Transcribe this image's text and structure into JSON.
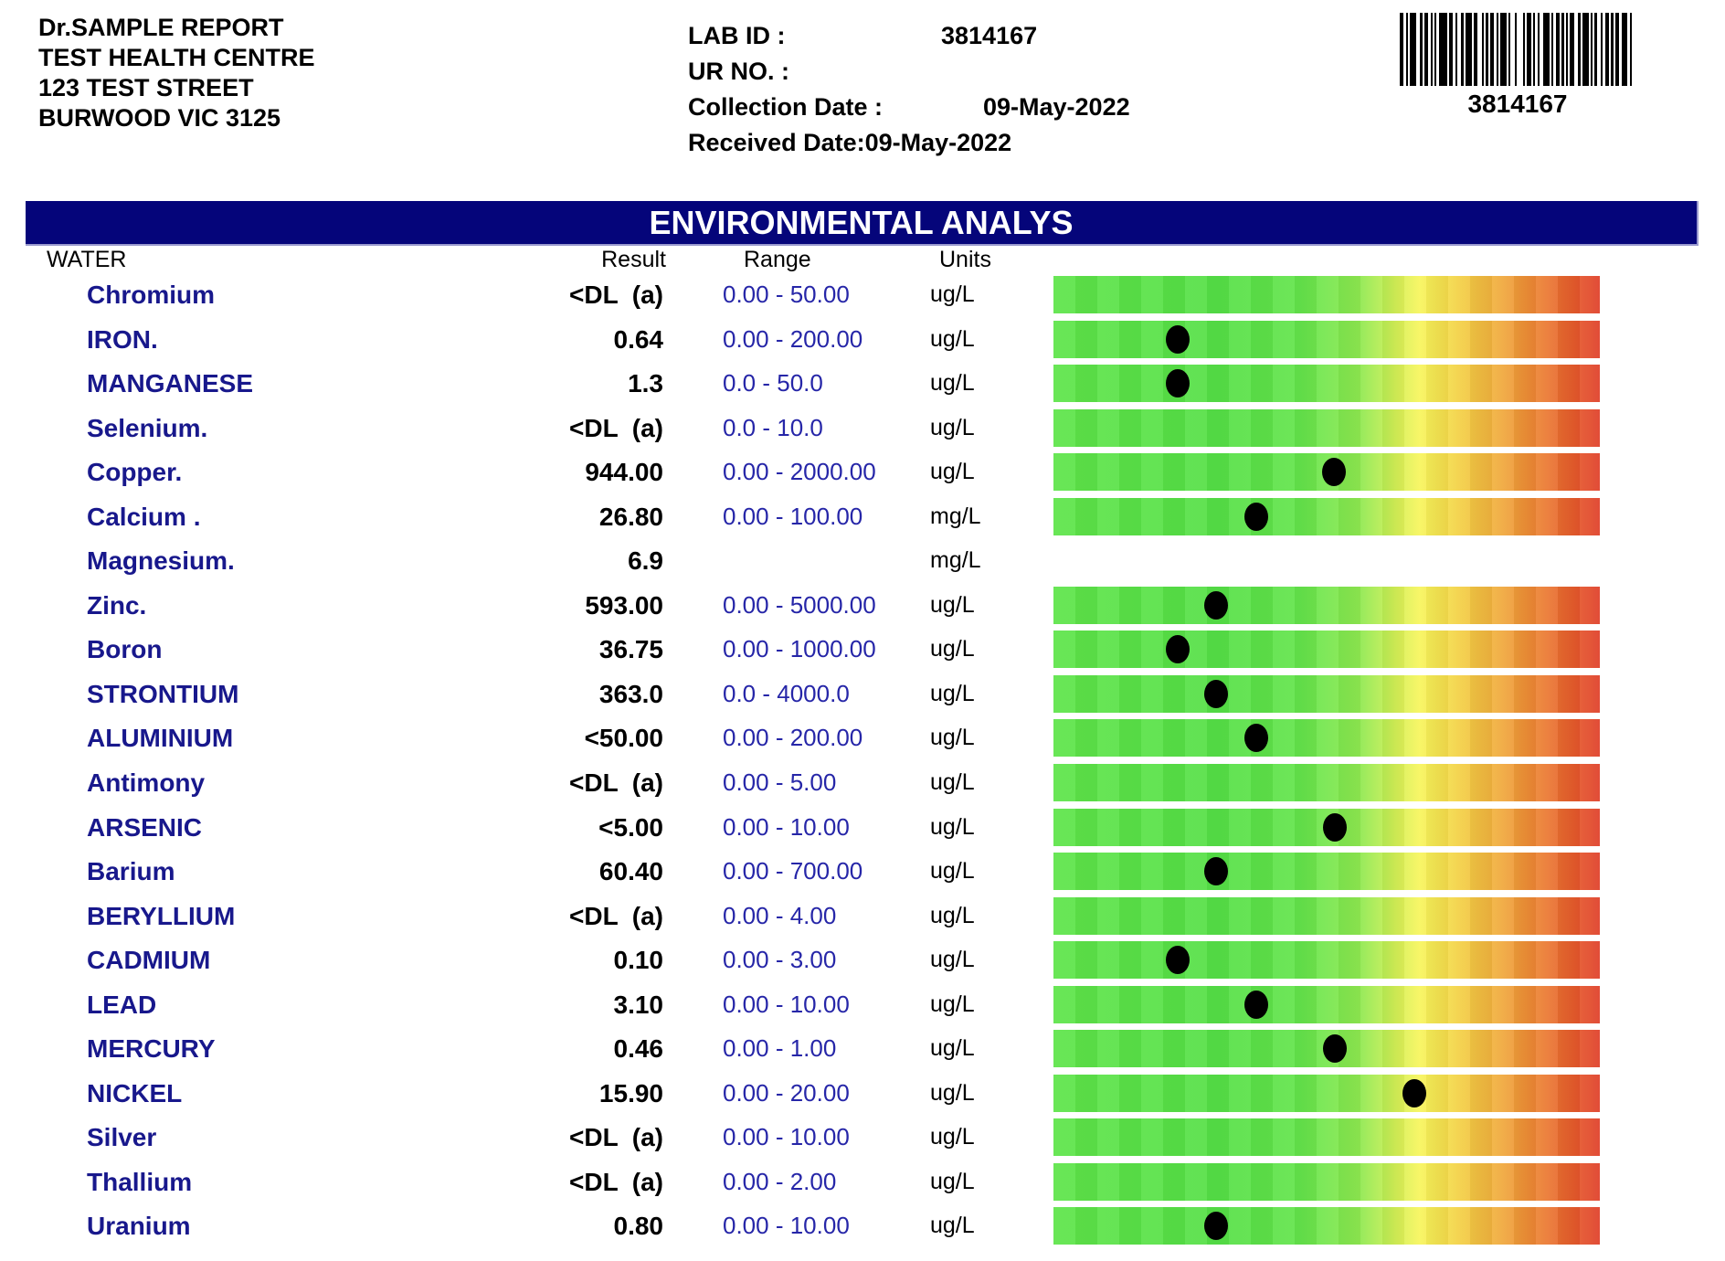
{
  "report_header": {
    "address_lines": [
      "Dr.SAMPLE REPORT",
      "TEST HEALTH CENTRE",
      "123 TEST STREET",
      "BURWOOD VIC 3125"
    ],
    "lab_id_label": "LAB ID :",
    "lab_id_value": "3814167",
    "ur_no_label": "UR NO. :",
    "collection_date_label": "Collection Date :",
    "collection_date_value": "09-May-2022",
    "received_date_label": "Received Date:",
    "received_date_value": "09-May-2022",
    "barcode_number": "3814167"
  },
  "banner": {
    "title": "ENVIRONMENTAL ANALYS",
    "background_color": "#05057a",
    "text_color": "#ffffff"
  },
  "table": {
    "section_label": "WATER",
    "columns": {
      "result": "Result",
      "range": "Range",
      "units": "Units"
    },
    "name_color": "#18188c",
    "range_color": "#2626a8",
    "rows": [
      {
        "name": "Chromium",
        "result": "<DL  (a)",
        "range": "0.00 - 50.00",
        "units": "ug/L",
        "bar": true,
        "dot": null
      },
      {
        "name": "IRON.",
        "result": "0.64",
        "range": "0.00 - 200.00",
        "units": "ug/L",
        "bar": true,
        "dot": 0.228
      },
      {
        "name": "MANGANESE",
        "result": "1.3",
        "range": "0.0 - 50.0",
        "units": "ug/L",
        "bar": true,
        "dot": 0.228
      },
      {
        "name": "Selenium.",
        "result": "<DL  (a)",
        "range": "0.0 - 10.0",
        "units": "ug/L",
        "bar": true,
        "dot": null
      },
      {
        "name": "Copper.",
        "result": "944.00",
        "range": "0.00 - 2000.00",
        "units": "ug/L",
        "bar": true,
        "dot": 0.513
      },
      {
        "name": "Calcium .",
        "result": "26.80",
        "range": "0.00 - 100.00",
        "units": "mg/L",
        "bar": true,
        "dot": 0.371
      },
      {
        "name": "Magnesium.",
        "result": "6.9",
        "range": "",
        "units": "mg/L",
        "bar": false,
        "dot": null
      },
      {
        "name": "Zinc.",
        "result": "593.00",
        "range": "0.00 - 5000.00",
        "units": "ug/L",
        "bar": true,
        "dot": 0.298
      },
      {
        "name": "Boron",
        "result": "36.75",
        "range": "0.00 - 1000.00",
        "units": "ug/L",
        "bar": true,
        "dot": 0.228
      },
      {
        "name": "STRONTIUM",
        "result": "363.0",
        "range": "0.0 - 4000.0",
        "units": "ug/L",
        "bar": true,
        "dot": 0.298
      },
      {
        "name": "ALUMINIUM",
        "result": "<50.00",
        "range": "0.00 - 200.00",
        "units": "ug/L",
        "bar": true,
        "dot": 0.371
      },
      {
        "name": "Antimony",
        "result": "<DL  (a)",
        "range": "0.00 - 5.00",
        "units": "ug/L",
        "bar": true,
        "dot": null
      },
      {
        "name": "ARSENIC",
        "result": "<5.00",
        "range": "0.00 - 10.00",
        "units": "ug/L",
        "bar": true,
        "dot": 0.515
      },
      {
        "name": "Barium",
        "result": "60.40",
        "range": "0.00 - 700.00",
        "units": "ug/L",
        "bar": true,
        "dot": 0.298
      },
      {
        "name": "BERYLLIUM",
        "result": "<DL  (a)",
        "range": "0.00 - 4.00",
        "units": "ug/L",
        "bar": true,
        "dot": null
      },
      {
        "name": "CADMIUM",
        "result": "0.10",
        "range": "0.00 - 3.00",
        "units": "ug/L",
        "bar": true,
        "dot": 0.228
      },
      {
        "name": "LEAD",
        "result": "3.10",
        "range": "0.00 - 10.00",
        "units": "ug/L",
        "bar": true,
        "dot": 0.371
      },
      {
        "name": "MERCURY",
        "result": "0.46",
        "range": "0.00 - 1.00",
        "units": "ug/L",
        "bar": true,
        "dot": 0.515
      },
      {
        "name": "NICKEL",
        "result": "15.90",
        "range": "0.00 - 20.00",
        "units": "ug/L",
        "bar": true,
        "dot": 0.661
      },
      {
        "name": "Silver",
        "result": "<DL  (a)",
        "range": "0.00 - 10.00",
        "units": "ug/L",
        "bar": true,
        "dot": null
      },
      {
        "name": "Thallium",
        "result": "<DL  (a)",
        "range": "0.00 - 2.00",
        "units": "ug/L",
        "bar": true,
        "dot": null
      },
      {
        "name": "Uranium",
        "result": "0.80",
        "range": "0.00 - 10.00",
        "units": "ug/L",
        "bar": true,
        "dot": 0.298
      }
    ]
  },
  "scale_bar": {
    "gradient_stops": [
      {
        "color": "#5ee449",
        "pos": "0%"
      },
      {
        "color": "#55e046",
        "pos": "30%"
      },
      {
        "color": "#63e44b",
        "pos": "45%"
      },
      {
        "color": "#8ee950",
        "pos": "56%"
      },
      {
        "color": "#d6f056",
        "pos": "63%"
      },
      {
        "color": "#f7f55c",
        "pos": "67%"
      },
      {
        "color": "#f3d245",
        "pos": "74%"
      },
      {
        "color": "#f0a93c",
        "pos": "82%"
      },
      {
        "color": "#ec8033",
        "pos": "89%"
      },
      {
        "color": "#e65c2c",
        "pos": "95%"
      },
      {
        "color": "#df3f28",
        "pos": "100%"
      }
    ],
    "dot_color": "#000000"
  }
}
